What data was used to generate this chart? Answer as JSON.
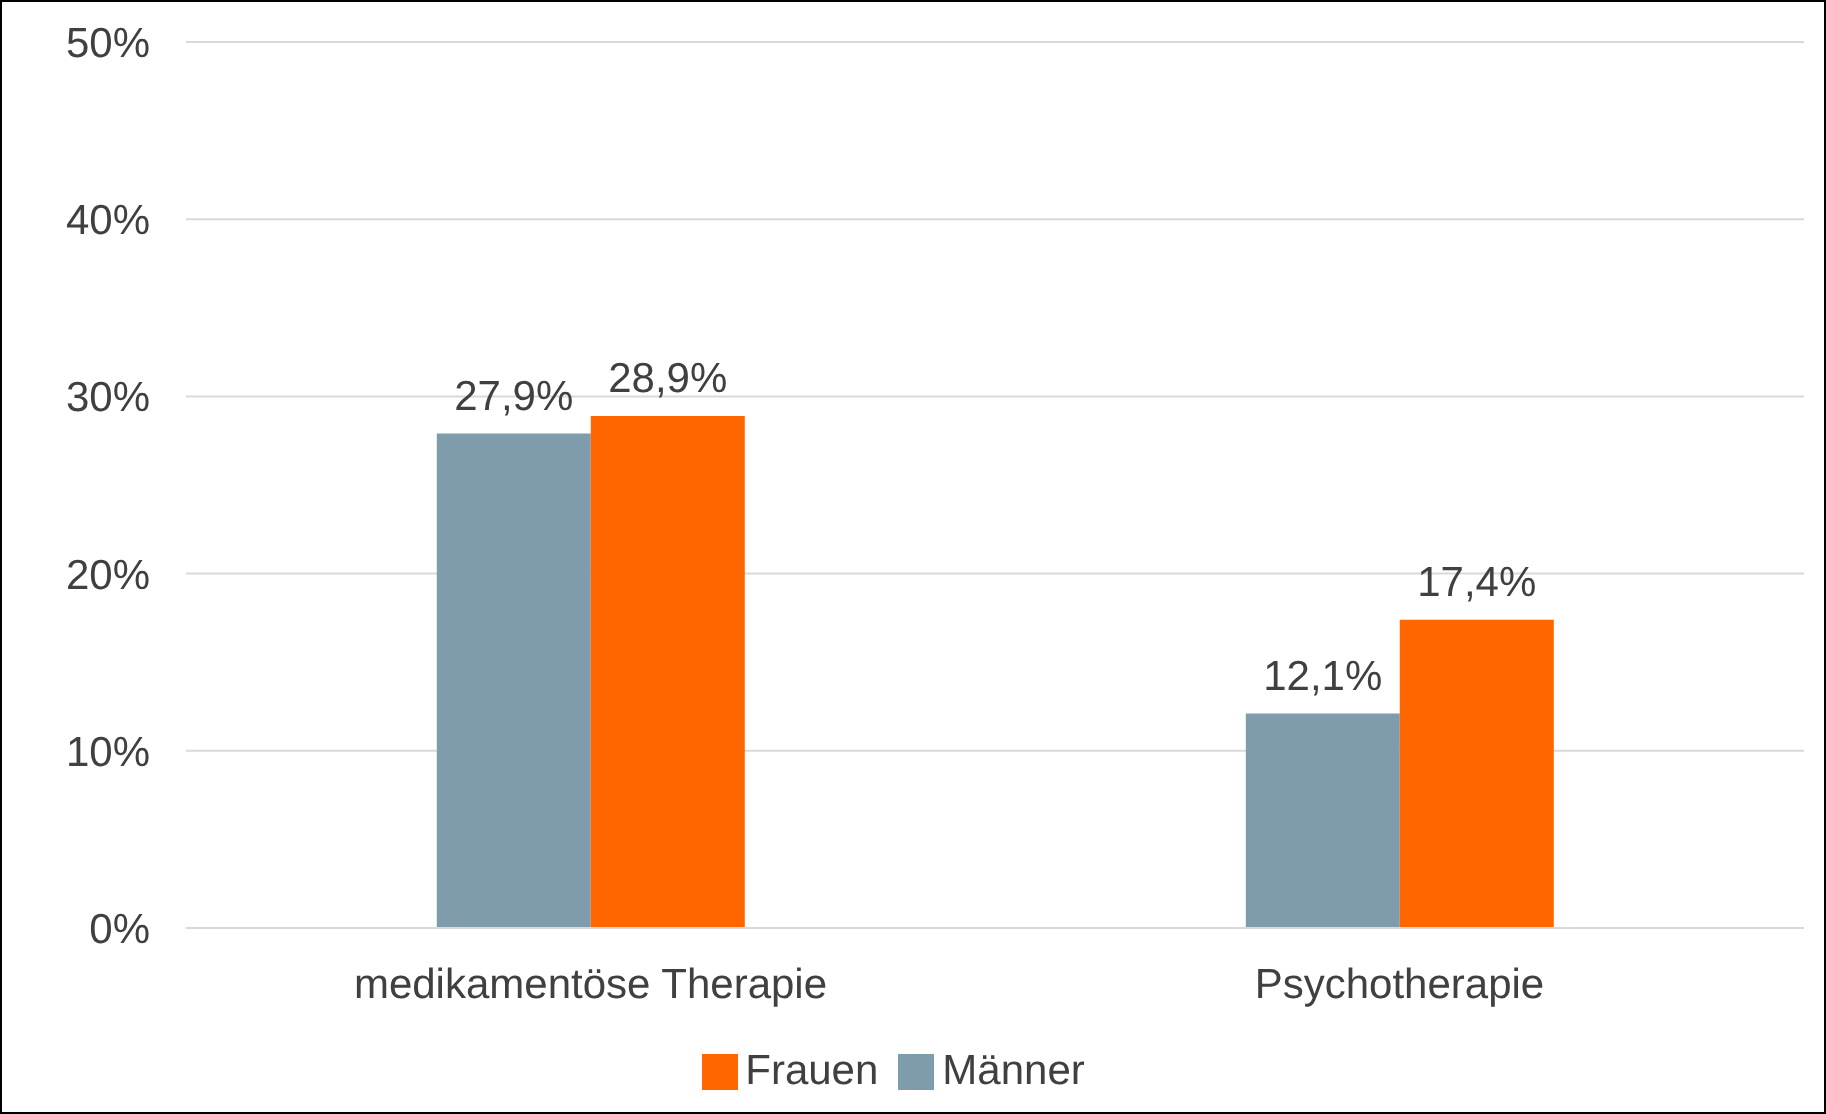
{
  "chart_data": {
    "type": "bar",
    "categories": [
      "medikamentöse Therapie",
      "Psychotherapie"
    ],
    "series": [
      {
        "name": "Männer",
        "color": "#7f9cad",
        "values": [
          27.9,
          12.1
        ],
        "value_labels": [
          "27,9%",
          "12,1%"
        ]
      },
      {
        "name": "Frauen",
        "color": "#ff6600",
        "values": [
          28.9,
          17.4
        ],
        "value_labels": [
          "28,9%",
          "17,4%"
        ]
      }
    ],
    "ylim": [
      0,
      50
    ],
    "yticks": [
      {
        "value": 0,
        "label": "0%"
      },
      {
        "value": 10,
        "label": "10%"
      },
      {
        "value": 20,
        "label": "20%"
      },
      {
        "value": 30,
        "label": "30%"
      },
      {
        "value": 40,
        "label": "40%"
      },
      {
        "value": 50,
        "label": "50%"
      }
    ],
    "grid": "y",
    "legend": "bottom"
  }
}
